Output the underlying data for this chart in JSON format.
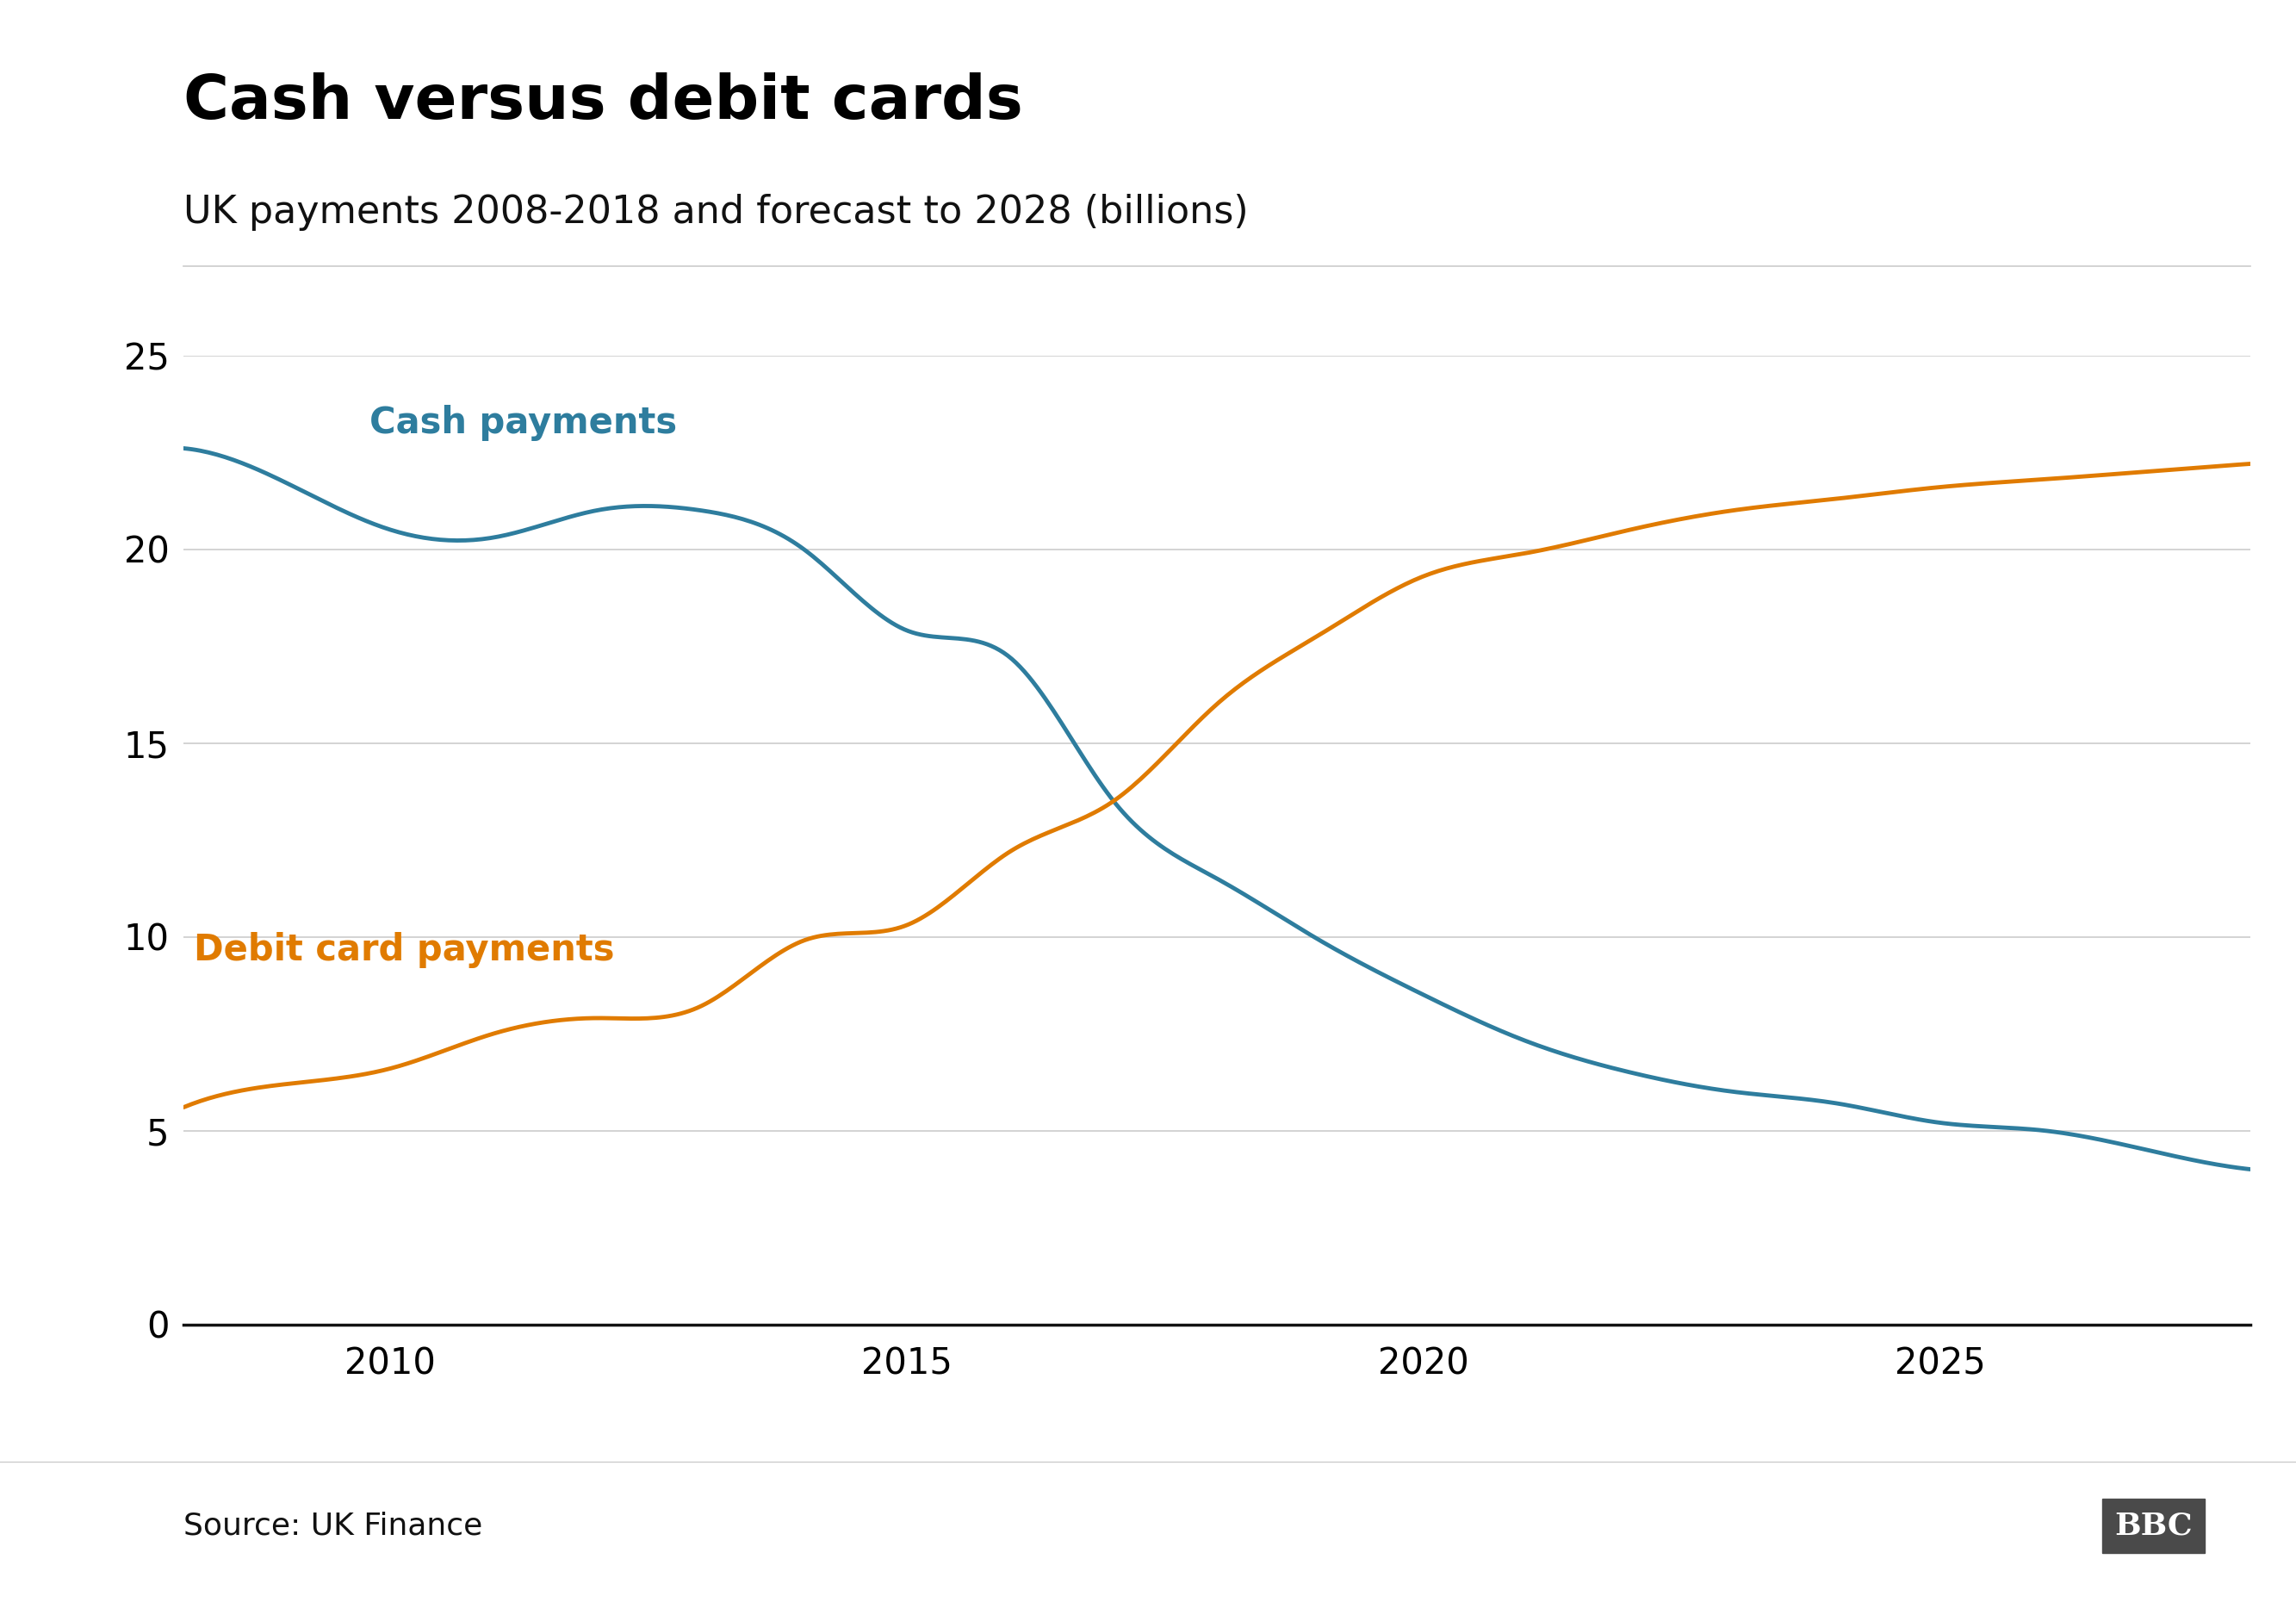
{
  "title": "Cash versus debit cards",
  "subtitle": "UK payments 2008-2018 and forecast to 2028 (billions)",
  "source": "Source: UK Finance",
  "cash_years": [
    2008,
    2009,
    2010,
    2011,
    2012,
    2013,
    2014,
    2015,
    2016,
    2017,
    2018,
    2019,
    2020,
    2021,
    2022,
    2023,
    2024,
    2025,
    2026,
    2027,
    2028
  ],
  "cash_values": [
    22.6,
    21.7,
    20.5,
    20.3,
    21.0,
    21.0,
    20.0,
    17.9,
    17.2,
    13.5,
    11.5,
    9.9,
    8.5,
    7.3,
    6.5,
    6.0,
    5.7,
    5.2,
    5.0,
    4.5,
    4.0
  ],
  "debit_years": [
    2008,
    2009,
    2010,
    2011,
    2012,
    2013,
    2014,
    2015,
    2016,
    2017,
    2018,
    2019,
    2020,
    2021,
    2022,
    2023,
    2024,
    2025,
    2026,
    2027,
    2028
  ],
  "debit_values": [
    5.6,
    6.2,
    6.6,
    7.5,
    7.9,
    8.2,
    9.9,
    10.3,
    12.2,
    13.5,
    16.0,
    17.8,
    19.3,
    19.9,
    20.5,
    21.0,
    21.3,
    21.6,
    21.8,
    22.0,
    22.2
  ],
  "cash_color": "#2e7d9e",
  "debit_color": "#e07b00",
  "cash_label": "Cash payments",
  "debit_label": "Debit card payments",
  "ylim": [
    0,
    25
  ],
  "yticks": [
    0,
    5,
    10,
    15,
    20,
    25
  ],
  "xlim": [
    2008,
    2028
  ],
  "xticks": [
    2010,
    2015,
    2020,
    2025
  ],
  "line_width": 3.5,
  "background_color": "#ffffff",
  "grid_color": "#cccccc",
  "title_fontsize": 52,
  "subtitle_fontsize": 32,
  "tick_fontsize": 30,
  "label_fontsize": 30,
  "source_fontsize": 26,
  "bbc_fontsize": 26
}
